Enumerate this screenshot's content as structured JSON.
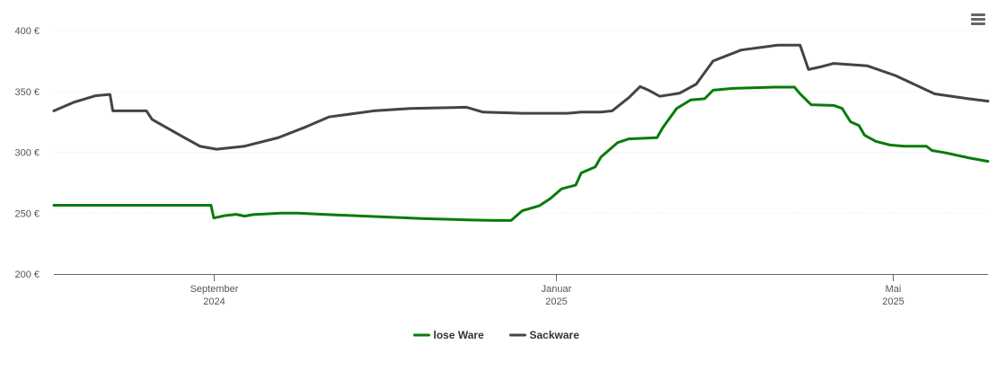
{
  "menu": {
    "icon": "hamburger-menu-icon"
  },
  "chart_data": {
    "type": "line",
    "title": "",
    "xlabel": "",
    "ylabel": "",
    "ylim": [
      200,
      400
    ],
    "xlim": [
      "2024-07-06",
      "2025-06-04"
    ],
    "y_ticks": [
      {
        "value": 200,
        "label": "200 €"
      },
      {
        "value": 250,
        "label": "250 €"
      },
      {
        "value": 300,
        "label": "300 €"
      },
      {
        "value": 350,
        "label": "350 €"
      },
      {
        "value": 400,
        "label": "400 €"
      }
    ],
    "x_ticks": [
      {
        "date": "2024-09-01",
        "label": [
          "September",
          "2024"
        ]
      },
      {
        "date": "2025-01-01",
        "label": [
          "Januar",
          "2025"
        ]
      },
      {
        "date": "2025-05-01",
        "label": [
          "Mai",
          "2025"
        ]
      }
    ],
    "grid": {
      "horizontal": true,
      "vertical": false
    },
    "legend": {
      "position": "bottom-center"
    },
    "series": [
      {
        "name": "lose Ware",
        "color": "#0a7a0a",
        "points": [
          [
            "2024-07-06",
            256.5
          ],
          [
            "2024-08-31",
            256.5
          ],
          [
            "2024-09-01",
            246
          ],
          [
            "2024-09-05",
            248
          ],
          [
            "2024-09-09",
            249
          ],
          [
            "2024-09-12",
            247.5
          ],
          [
            "2024-09-15",
            248.8
          ],
          [
            "2024-09-25",
            250
          ],
          [
            "2024-10-01",
            250
          ],
          [
            "2024-10-10",
            249
          ],
          [
            "2024-10-30",
            247
          ],
          [
            "2024-11-15",
            245.5
          ],
          [
            "2024-11-30",
            244.5
          ],
          [
            "2024-12-10",
            244
          ],
          [
            "2024-12-16",
            244
          ],
          [
            "2024-12-20",
            252
          ],
          [
            "2024-12-26",
            256
          ],
          [
            "2024-12-30",
            262
          ],
          [
            "2025-01-03",
            270
          ],
          [
            "2025-01-08",
            273
          ],
          [
            "2025-01-10",
            283
          ],
          [
            "2025-01-15",
            288
          ],
          [
            "2025-01-17",
            296
          ],
          [
            "2025-01-23",
            308
          ],
          [
            "2025-01-27",
            311
          ],
          [
            "2025-02-06",
            312
          ],
          [
            "2025-02-08",
            320
          ],
          [
            "2025-02-13",
            336
          ],
          [
            "2025-02-18",
            343
          ],
          [
            "2025-02-23",
            344
          ],
          [
            "2025-02-26",
            351
          ],
          [
            "2025-03-05",
            352.5
          ],
          [
            "2025-03-20",
            353.5
          ],
          [
            "2025-03-27",
            353.5
          ],
          [
            "2025-03-29",
            348
          ],
          [
            "2025-04-02",
            339
          ],
          [
            "2025-04-10",
            338.5
          ],
          [
            "2025-04-13",
            336
          ],
          [
            "2025-04-16",
            325
          ],
          [
            "2025-04-19",
            322
          ],
          [
            "2025-04-21",
            314
          ],
          [
            "2025-04-25",
            309
          ],
          [
            "2025-04-30",
            306
          ],
          [
            "2025-05-05",
            305
          ],
          [
            "2025-05-13",
            305
          ],
          [
            "2025-05-15",
            301.5
          ],
          [
            "2025-05-20",
            299.5
          ],
          [
            "2025-05-28",
            295.5
          ],
          [
            "2025-06-04",
            292.5
          ]
        ]
      },
      {
        "name": "Sackware",
        "color": "#434348",
        "points": [
          [
            "2024-07-06",
            334
          ],
          [
            "2024-07-13",
            341
          ],
          [
            "2024-07-21",
            346.5
          ],
          [
            "2024-07-26",
            347.5
          ],
          [
            "2024-07-27",
            334
          ],
          [
            "2024-08-08",
            334
          ],
          [
            "2024-08-10",
            327
          ],
          [
            "2024-08-20",
            314
          ],
          [
            "2024-08-27",
            305
          ],
          [
            "2024-09-02",
            302.5
          ],
          [
            "2024-09-12",
            305
          ],
          [
            "2024-09-24",
            312
          ],
          [
            "2024-10-04",
            321
          ],
          [
            "2024-10-12",
            329
          ],
          [
            "2024-10-28",
            334
          ],
          [
            "2024-11-10",
            336
          ],
          [
            "2024-11-30",
            337
          ],
          [
            "2024-12-06",
            333
          ],
          [
            "2024-12-20",
            332
          ],
          [
            "2025-01-05",
            332
          ],
          [
            "2025-01-10",
            333
          ],
          [
            "2025-01-17",
            333
          ],
          [
            "2025-01-21",
            334
          ],
          [
            "2025-01-27",
            345
          ],
          [
            "2025-01-31",
            354
          ],
          [
            "2025-02-03",
            351
          ],
          [
            "2025-02-07",
            346
          ],
          [
            "2025-02-14",
            348.5
          ],
          [
            "2025-02-20",
            356
          ],
          [
            "2025-02-26",
            375
          ],
          [
            "2025-03-08",
            384
          ],
          [
            "2025-03-21",
            388
          ],
          [
            "2025-03-29",
            388
          ],
          [
            "2025-04-01",
            368
          ],
          [
            "2025-04-05",
            370
          ],
          [
            "2025-04-10",
            373
          ],
          [
            "2025-04-22",
            371
          ],
          [
            "2025-05-02",
            363
          ],
          [
            "2025-05-16",
            348
          ],
          [
            "2025-05-28",
            344
          ],
          [
            "2025-06-04",
            342
          ]
        ]
      }
    ]
  }
}
